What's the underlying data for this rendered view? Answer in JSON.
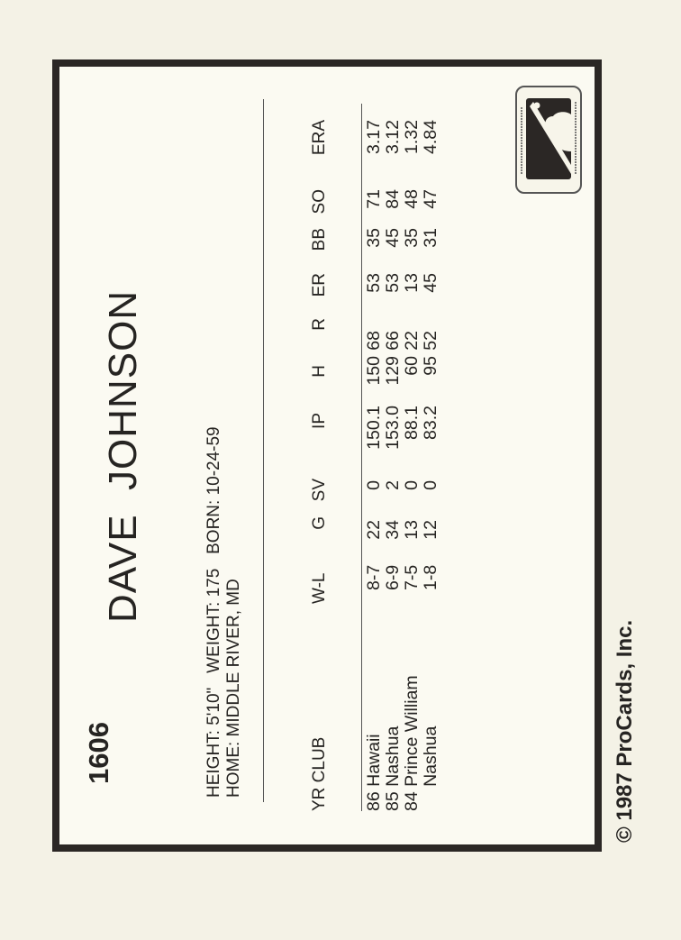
{
  "card": {
    "number": "1606",
    "player_name": "DAVE  JOHNSON",
    "bio_line1": "HEIGHT: 5'10\"   WEIGHT: 175   BORN: 10-24-59",
    "bio_line2": "HOME: MIDDLE RIVER, MD",
    "copyright": "© 1987 ProCards, Inc.",
    "logo": "official-licensee-major-league-baseball-logo",
    "logo_text": [
      "OFFICIAL LICENSEE",
      "MAJOR LEAGUE BASEBALL"
    ]
  },
  "stats": {
    "headers": {
      "club": "YR CLUB",
      "wl": "W-L",
      "g": "G",
      "sv": "SV",
      "ip": "IP",
      "h": "H",
      "r": "R",
      "er": "ER",
      "bb": "BB",
      "so": "SO",
      "era": "ERA"
    },
    "rows": [
      {
        "club": "86 Hawaii",
        "wl": "8-7",
        "g": "22",
        "sv": "0",
        "ip": "150.1",
        "h": "150",
        "r": "68",
        "er": "53",
        "bb": "35",
        "so": "71",
        "era": "3.17"
      },
      {
        "club": "85 Nashua",
        "wl": "6-9",
        "g": "34",
        "sv": "2",
        "ip": "153.0",
        "h": "129",
        "r": "66",
        "er": "53",
        "bb": "45",
        "so": "84",
        "era": "3.12"
      },
      {
        "club": "84 Prince William",
        "wl": "7-5",
        "g": "13",
        "sv": "0",
        "ip": "88.1",
        "h": "60",
        "r": "22",
        "er": "13",
        "bb": "35",
        "so": "48",
        "era": "1.32"
      },
      {
        "club": "     Nashua",
        "wl": "1-8",
        "g": "12",
        "sv": "0",
        "ip": "83.2",
        "h": "95",
        "r": "52",
        "er": "45",
        "bb": "31",
        "so": "47",
        "era": "4.84"
      }
    ]
  }
}
